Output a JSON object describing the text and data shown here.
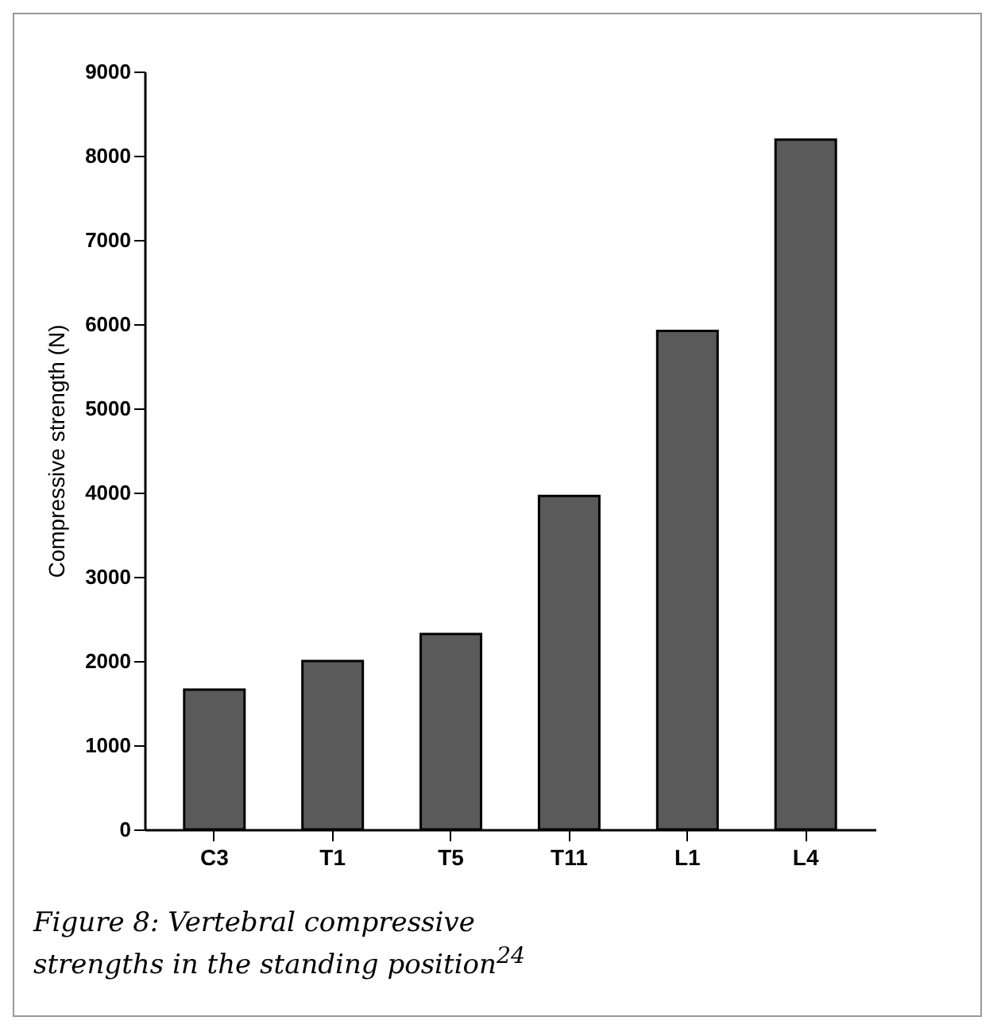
{
  "chart_data": {
    "type": "bar",
    "ylabel": "Compressive strength (N)",
    "categories": [
      "C3",
      "T1",
      "T5",
      "T11",
      "L1",
      "L4"
    ],
    "values": [
      1660,
      2000,
      2320,
      3960,
      5920,
      8190
    ],
    "color": "#5a5a5a",
    "ylim": [
      0,
      9000
    ],
    "yticks": [
      0,
      1000,
      2000,
      3000,
      4000,
      5000,
      6000,
      7000,
      8000,
      9000
    ],
    "grid": false,
    "annotations": [
      "Figure 8: Vertebral compressive strengths in the standing position$^{24}$"
    ]
  }
}
